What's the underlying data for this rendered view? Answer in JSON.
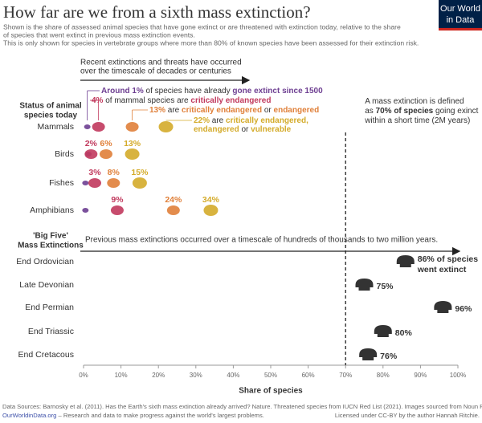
{
  "title": "How far are we from a sixth mass extinction?",
  "subtitle": [
    "Shown is the share of assessed animal species that have gone extinct or are threatened with extinction today, relative to the share",
    "of species that went extinct in previous mass extinction events.",
    "This is only shown for species in vertebrate groups where more than 80% of known species have been assessed for their extinction risk."
  ],
  "logo": [
    "Our World",
    "in Data"
  ],
  "chart_data": {
    "type": "dot-strip",
    "xlabel": "Share of species",
    "xlim": [
      0,
      100
    ],
    "xticks": [
      {
        "value": 0,
        "label": "0%"
      },
      {
        "value": 10,
        "label": "10%"
      },
      {
        "value": 20,
        "label": "20%"
      },
      {
        "value": 30,
        "label": "30%"
      },
      {
        "value": 40,
        "label": "40%"
      },
      {
        "value": 50,
        "label": "50%"
      },
      {
        "value": 60,
        "label": "60%"
      },
      {
        "value": 70,
        "label": "70%"
      },
      {
        "value": 80,
        "label": "80%"
      },
      {
        "value": 90,
        "label": "90%"
      },
      {
        "value": 100,
        "label": "100%"
      }
    ],
    "threshold": {
      "value": 70,
      "lines": [
        [
          {
            "text": "A mass extinction is defined"
          }
        ],
        [
          {
            "text": "as "
          },
          {
            "text": "70% of species",
            "bold": true
          },
          {
            "text": " going exinct"
          }
        ],
        [
          {
            "text": "within a short time (2M years)"
          }
        ]
      ]
    },
    "status": {
      "heading": [
        "Status of animal",
        "species today"
      ],
      "arrow_text": [
        "Recent extinctions and threats  have occurred",
        "over the timescale of decades or centuries"
      ],
      "categories": [
        "Mammals",
        "Birds",
        "Fishes",
        "Amphibians"
      ],
      "series": [
        {
          "name": "gone extinct since 1500",
          "color": "#6d3e91",
          "values": [
            1,
            1.3,
            0.5,
            0.5
          ],
          "value_labels": [
            null,
            null,
            null,
            null
          ]
        },
        {
          "name": "critically endangered",
          "color": "#c1395d",
          "values": [
            4,
            2,
            3,
            9
          ],
          "value_labels": [
            null,
            "2%",
            "3%",
            "9%"
          ]
        },
        {
          "name": "critically endangered or endangered",
          "color": "#e0803a",
          "values": [
            13,
            6,
            8,
            24
          ],
          "value_labels": [
            null,
            "6%",
            "8%",
            "24%"
          ]
        },
        {
          "name": "critically endangered, endangered or vulnerable",
          "color": "#d4ab2a",
          "values": [
            22,
            13,
            15,
            34
          ],
          "value_labels": [
            null,
            "13%",
            "15%",
            "34%"
          ]
        }
      ],
      "annotations": [
        [
          {
            "text": "Around 1%",
            "color": "#6d3e91"
          },
          {
            "text": " of species have already "
          },
          {
            "text": "gone extinct since 1500",
            "color": "#6d3e91"
          }
        ],
        [
          {
            "text": "4%",
            "color": "#c1395d"
          },
          {
            "text": " of mammal species are "
          },
          {
            "text": "critically endangered",
            "color": "#c1395d"
          }
        ],
        [
          {
            "text": "13%",
            "color": "#e0803a"
          },
          {
            "text": " are "
          },
          {
            "text": "critically endangered",
            "color": "#e0803a"
          },
          {
            "text": " or "
          },
          {
            "text": "endangered",
            "color": "#e0803a"
          }
        ],
        [
          {
            "text": "22%",
            "color": "#d4ab2a"
          },
          {
            "text": " are "
          },
          {
            "text": "critically endangered,",
            "color": "#d4ab2a"
          }
        ],
        [
          {
            "text": "endangered",
            "color": "#d4ab2a"
          },
          {
            "text": " or "
          },
          {
            "text": "vulnerable",
            "color": "#d4ab2a"
          }
        ]
      ]
    },
    "extinctions": {
      "heading": [
        "'Big Five'",
        "Mass Extinctions"
      ],
      "arrow_text": "Previous mass extinctions occurred over a timescale of hundreds of thousands to two million years.",
      "categories": [
        "End Ordovician",
        "Late Devonian",
        "End Permian",
        "End Triassic",
        "End Cretacous"
      ],
      "values": [
        86,
        75,
        96,
        80,
        76
      ],
      "value_labels": [
        "86% of species",
        "75%",
        "96%",
        "80%",
        "76%"
      ],
      "note": "went extinct",
      "color": "#333333"
    }
  },
  "footer": [
    "Data Sources: Barnosky et al. (2011). Has the Earth's sixth mass extinction already arrived? Nature. Threatened species from IUCN Red List (2021). Images sourced from Noun Project.",
    "OurWorldinData.org",
    " – Research and data to make progress against the world's largest problems.",
    "Licensed under CC-BY by the author Hannah Ritchie."
  ]
}
